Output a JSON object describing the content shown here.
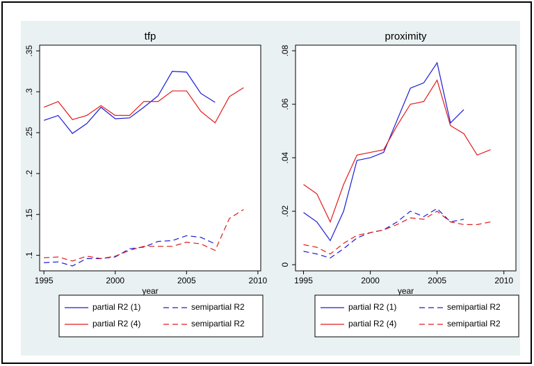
{
  "chart_data": [
    {
      "type": "line",
      "title": "tfp",
      "x_label": "year",
      "x": [
        1995,
        1996,
        1997,
        1998,
        1999,
        2000,
        2001,
        2002,
        2003,
        2004,
        2005,
        2006,
        2007,
        2008,
        2009
      ],
      "xlim": [
        1994.7,
        2010.2
      ],
      "xticks": [
        1995,
        2000,
        2005,
        2010
      ],
      "ylim": [
        0.081,
        0.357
      ],
      "yticks": [
        {
          "value": 0.1,
          "label": ".1"
        },
        {
          "value": 0.15,
          "label": ".15"
        },
        {
          "value": 0.2,
          "label": ".2"
        },
        {
          "value": 0.25,
          "label": ".25"
        },
        {
          "value": 0.3,
          "label": ".3"
        },
        {
          "value": 0.35,
          "label": ".35"
        }
      ],
      "series": [
        {
          "name": "partial R2 (1)",
          "color": "#1a1ad6",
          "dash": "solid",
          "values": [
            0.265,
            0.271,
            0.249,
            0.261,
            0.281,
            0.267,
            0.268,
            0.281,
            0.295,
            0.325,
            0.324,
            0.298,
            0.287,
            null,
            null
          ]
        },
        {
          "name": "semipartial R2",
          "color": "#1a1ad6",
          "dash": "dashed",
          "values": [
            0.091,
            0.092,
            0.087,
            0.096,
            0.096,
            0.098,
            0.108,
            0.11,
            0.117,
            0.118,
            0.124,
            0.122,
            0.114,
            null,
            null
          ]
        },
        {
          "name": "partial R2 (4)",
          "color": "#e01a1a",
          "dash": "solid",
          "values": [
            0.281,
            0.288,
            0.266,
            0.271,
            0.283,
            0.271,
            0.271,
            0.288,
            0.288,
            0.301,
            0.301,
            0.276,
            0.262,
            0.294,
            0.305
          ]
        },
        {
          "name": "semipartial R2",
          "color": "#e01a1a",
          "dash": "dashed",
          "values": [
            0.097,
            0.098,
            0.093,
            0.099,
            0.096,
            0.099,
            0.106,
            0.111,
            0.111,
            0.111,
            0.116,
            0.114,
            0.106,
            0.145,
            0.156
          ]
        }
      ]
    },
    {
      "type": "line",
      "title": "proximity",
      "x_label": "year",
      "x": [
        1995,
        1996,
        1997,
        1998,
        1999,
        2000,
        2001,
        2002,
        2003,
        2004,
        2005,
        2006,
        2007,
        2008,
        2009
      ],
      "xlim": [
        1994.4,
        2010.9
      ],
      "xticks": [
        1995,
        2000,
        2005,
        2010
      ],
      "ylim": [
        -0.0023,
        0.0821
      ],
      "yticks": [
        0,
        {
          "value": 0.02,
          "label": ".02"
        },
        {
          "value": 0.04,
          "label": ".04"
        },
        {
          "value": 0.06,
          "label": ".06"
        },
        {
          "value": 0.08,
          "label": ".08"
        }
      ],
      "series": [
        {
          "name": "partial R2 (1)",
          "color": "#1a1ad6",
          "dash": "solid",
          "values": [
            0.0195,
            0.016,
            0.009,
            0.02,
            0.039,
            0.04,
            0.042,
            0.054,
            0.066,
            0.068,
            0.0755,
            0.053,
            0.058,
            null,
            null
          ]
        },
        {
          "name": "semipartial R2",
          "color": "#1a1ad6",
          "dash": "dashed",
          "values": [
            0.005,
            0.004,
            0.0025,
            0.006,
            0.01,
            0.012,
            0.013,
            0.016,
            0.02,
            0.018,
            0.021,
            0.016,
            0.017,
            null,
            null
          ]
        },
        {
          "name": "partial R2 (4)",
          "color": "#e01a1a",
          "dash": "solid",
          "values": [
            0.03,
            0.0265,
            0.016,
            0.03,
            0.041,
            0.042,
            0.043,
            0.052,
            0.06,
            0.061,
            0.069,
            0.052,
            0.049,
            0.041,
            0.043
          ]
        },
        {
          "name": "semipartial R2",
          "color": "#e01a1a",
          "dash": "dashed",
          "values": [
            0.0075,
            0.0065,
            0.004,
            0.008,
            0.011,
            0.012,
            0.013,
            0.015,
            0.0175,
            0.017,
            0.02,
            0.016,
            0.015,
            0.015,
            0.016
          ]
        }
      ]
    }
  ]
}
